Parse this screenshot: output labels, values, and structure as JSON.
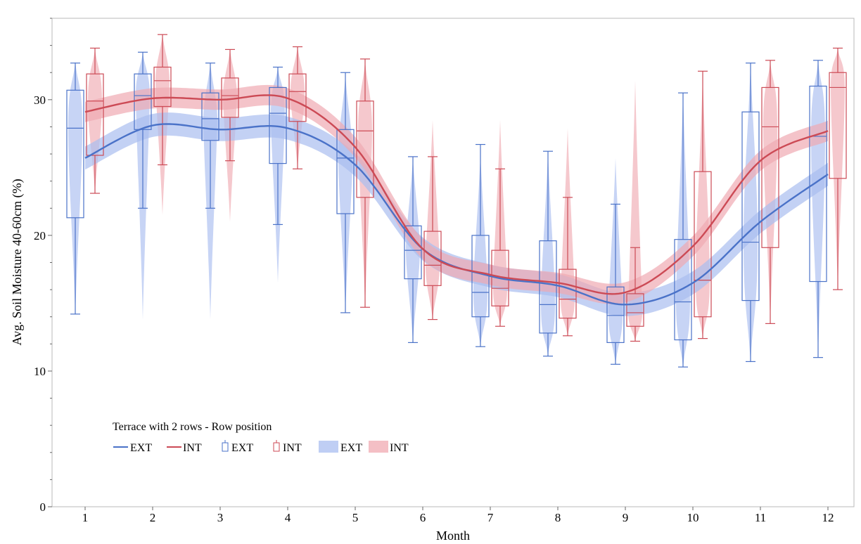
{
  "chart_data": {
    "type": "box",
    "title": "",
    "xlabel": "Month",
    "ylabel": "Avg. Soil Moisture 40-60cm (%)",
    "categories": [
      "1",
      "2",
      "3",
      "4",
      "5",
      "6",
      "7",
      "8",
      "9",
      "10",
      "11",
      "12"
    ],
    "ylim": [
      0,
      36
    ],
    "yticks": [
      0,
      10,
      20,
      30
    ],
    "grid": false,
    "legend": {
      "title": "Terrace with 2 rows - Row position",
      "placement": "bottom-left",
      "line_labels": [
        "EXT",
        "INT"
      ],
      "box_labels": [
        "EXT",
        "INT"
      ],
      "band_labels": [
        "EXT",
        "INT"
      ]
    },
    "colors": {
      "EXT": "#4a72c8",
      "INT": "#cc4a55",
      "EXT_fill": "#a9bdf0",
      "INT_fill": "#f0aab2"
    },
    "series": [
      {
        "name": "EXT",
        "boxes": [
          {
            "min": 14.2,
            "q1": 21.3,
            "median": 27.9,
            "q3": 30.7,
            "max": 32.7
          },
          {
            "min": 22.0,
            "q1": 27.8,
            "median": 30.3,
            "q3": 31.9,
            "max": 33.5
          },
          {
            "min": 22.0,
            "q1": 27.0,
            "median": 28.6,
            "q3": 30.5,
            "max": 32.7
          },
          {
            "min": 20.8,
            "q1": 25.3,
            "median": 29.0,
            "q3": 30.9,
            "max": 32.4
          },
          {
            "min": 14.3,
            "q1": 21.6,
            "median": 25.7,
            "q3": 27.8,
            "max": 32.0
          },
          {
            "min": 12.1,
            "q1": 16.8,
            "median": 18.9,
            "q3": 20.7,
            "max": 25.8
          },
          {
            "min": 11.8,
            "q1": 14.0,
            "median": 15.8,
            "q3": 20.0,
            "max": 26.7
          },
          {
            "min": 11.1,
            "q1": 12.8,
            "median": 14.9,
            "q3": 19.6,
            "max": 26.2
          },
          {
            "min": 10.5,
            "q1": 12.1,
            "median": 14.1,
            "q3": 16.2,
            "max": 22.3
          },
          {
            "min": 10.3,
            "q1": 12.3,
            "median": 15.1,
            "q3": 19.7,
            "max": 30.5
          },
          {
            "min": 10.7,
            "q1": 15.2,
            "median": 19.5,
            "q3": 29.1,
            "max": 32.7
          },
          {
            "min": 11.0,
            "q1": 16.6,
            "median": 27.3,
            "q3": 31.0,
            "max": 32.9
          }
        ],
        "smoother": [
          25.7,
          28.1,
          27.8,
          27.9,
          25.2,
          19.0,
          17.0,
          16.3,
          14.9,
          16.5,
          21.0,
          24.5
        ],
        "band_halfwidth": 0.85,
        "violin_range": [
          [
            14.0,
            32.9
          ],
          [
            13.8,
            33.5
          ],
          [
            13.8,
            32.7
          ],
          [
            16.5,
            32.4
          ],
          [
            14.3,
            31.8
          ],
          [
            12.1,
            25.7
          ],
          [
            11.8,
            26.0
          ],
          [
            11.1,
            26.2
          ],
          [
            10.5,
            25.7
          ],
          [
            10.2,
            30.6
          ],
          [
            10.5,
            32.8
          ],
          [
            11.0,
            33.0
          ]
        ]
      },
      {
        "name": "INT",
        "boxes": [
          {
            "min": 23.1,
            "q1": 25.9,
            "median": 29.9,
            "q3": 31.9,
            "max": 33.8
          },
          {
            "min": 25.2,
            "q1": 29.5,
            "median": 31.4,
            "q3": 32.4,
            "max": 34.8
          },
          {
            "min": 25.5,
            "q1": 28.7,
            "median": 30.3,
            "q3": 31.6,
            "max": 33.7
          },
          {
            "min": 24.9,
            "q1": 28.4,
            "median": 30.6,
            "q3": 31.9,
            "max": 33.9
          },
          {
            "min": 14.7,
            "q1": 22.8,
            "median": 27.7,
            "q3": 29.9,
            "max": 33.0
          },
          {
            "min": 13.8,
            "q1": 16.3,
            "median": 17.8,
            "q3": 20.3,
            "max": 25.8
          },
          {
            "min": 13.3,
            "q1": 14.8,
            "median": 16.1,
            "q3": 18.9,
            "max": 24.9
          },
          {
            "min": 12.6,
            "q1": 13.9,
            "median": 15.3,
            "q3": 17.5,
            "max": 22.8
          },
          {
            "min": 12.2,
            "q1": 13.3,
            "median": 14.3,
            "q3": 15.7,
            "max": 19.1
          },
          {
            "min": 12.4,
            "q1": 14.0,
            "median": 16.7,
            "q3": 24.7,
            "max": 32.1
          },
          {
            "min": 13.5,
            "q1": 19.1,
            "median": 28.0,
            "q3": 30.9,
            "max": 32.9
          },
          {
            "min": 16.0,
            "q1": 24.2,
            "median": 30.9,
            "q3": 32.0,
            "max": 33.8
          }
        ],
        "smoother": [
          29.1,
          30.1,
          30.0,
          30.1,
          26.5,
          19.0,
          17.1,
          16.5,
          15.8,
          19.2,
          25.5,
          27.7
        ],
        "band_halfwidth": 0.75,
        "violin_range": [
          [
            23.1,
            33.8
          ],
          [
            21.5,
            34.8
          ],
          [
            21.0,
            33.7
          ],
          [
            24.9,
            33.9
          ],
          [
            14.7,
            32.9
          ],
          [
            13.8,
            28.5
          ],
          [
            13.3,
            28.5
          ],
          [
            12.6,
            27.9
          ],
          [
            12.2,
            31.4
          ],
          [
            12.4,
            31.9
          ],
          [
            13.5,
            32.9
          ],
          [
            16.0,
            33.8
          ]
        ]
      }
    ]
  }
}
